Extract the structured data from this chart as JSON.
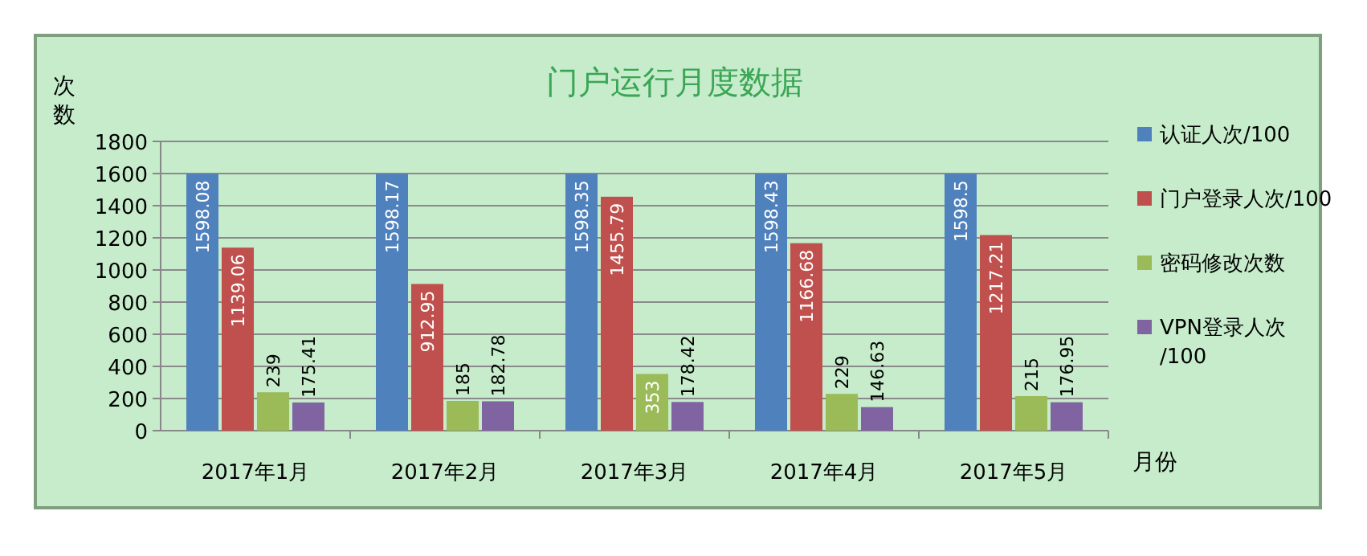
{
  "chart_data": {
    "type": "bar",
    "title": "门户运行月度数据",
    "ylabel": "次数",
    "xlabel": "月份",
    "categories": [
      "2017年1月",
      "2017年2月",
      "2017年3月",
      "2017年4月",
      "2017年5月"
    ],
    "series": [
      {
        "name": "认证人次/100",
        "color": "#4f81bd",
        "values": [
          1598.08,
          1598.17,
          1598.35,
          1598.43,
          1598.5
        ]
      },
      {
        "name": "门户登录人次/100",
        "color": "#c0504d",
        "values": [
          1139.06,
          912.95,
          1455.79,
          1166.68,
          1217.21
        ]
      },
      {
        "name": "密码修改次数",
        "color": "#9bbb59",
        "values": [
          239,
          185,
          353,
          229,
          215
        ]
      },
      {
        "name": "VPN登录人次/100",
        "color": "#8064a2",
        "values": [
          175.41,
          182.78,
          178.42,
          146.63,
          176.95
        ]
      }
    ],
    "ylim": [
      0,
      1800
    ],
    "yticks": [
      0,
      200,
      400,
      600,
      800,
      1000,
      1200,
      1400,
      1600,
      1800
    ],
    "grid": "y",
    "legend": "right",
    "data_labels": true
  }
}
